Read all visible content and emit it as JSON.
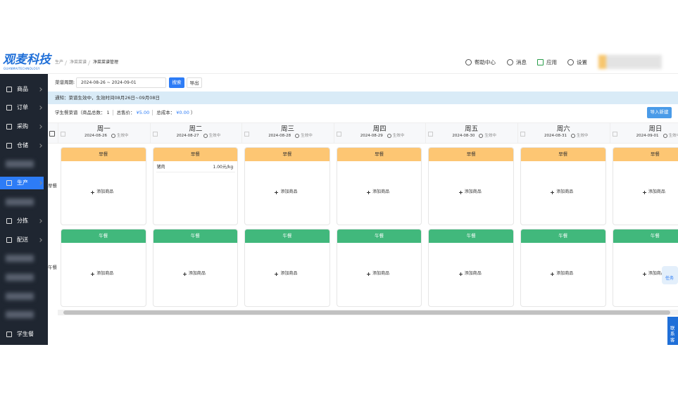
{
  "logo": {
    "title": "观麦科技",
    "subtitle": "GUANMAITECHNOLOGY"
  },
  "breadcrumb": [
    "生产",
    "净菜菜谱",
    "净菜菜谱管理"
  ],
  "header_links": [
    "帮助中心",
    "消息",
    "应用",
    "设置"
  ],
  "sidebar": [
    "商品",
    "订单",
    "采购",
    "仓储",
    "生产",
    "分拣",
    "配送",
    "学生餐"
  ],
  "filter": {
    "label": "菜谱周期:",
    "date_range": "2024-08-26 ~ 2024-09-01",
    "search": "搜索",
    "export": "导出"
  },
  "notice": "通知：菜谱生效中，生效时间08月26日~09月08日",
  "summary": {
    "title": "学生餐菜谱（商品总数：",
    "count": "1",
    "price_label": "总售价：",
    "price": "¥5.00",
    "cost_label": "总成本：",
    "cost": "¥0.00",
    "close": "）",
    "import": "导入新建"
  },
  "days": [
    {
      "name": "周一",
      "date": "2024-08-26",
      "status": "生效中"
    },
    {
      "name": "周二",
      "date": "2024-08-27",
      "status": "生效中"
    },
    {
      "name": "周三",
      "date": "2024-08-28",
      "status": "生效中"
    },
    {
      "name": "周四",
      "date": "2024-08-29",
      "status": "生效中"
    },
    {
      "name": "周五",
      "date": "2024-08-30",
      "status": "生效中"
    },
    {
      "name": "周六",
      "date": "2024-08-31",
      "status": "生效中"
    },
    {
      "name": "周日",
      "date": "2024-09-01",
      "status": "生效中"
    }
  ],
  "meals": [
    {
      "name": "早餐",
      "cells": [
        [],
        [
          {
            "name": "猪肉",
            "price": "1.00元/kg"
          }
        ],
        [],
        [],
        [],
        [],
        []
      ]
    },
    {
      "name": "午餐",
      "cells": [
        [],
        [],
        [],
        [],
        [],
        [],
        []
      ]
    }
  ],
  "add_item": "添加商品",
  "float": {
    "task": "任务",
    "contact": "联系客"
  }
}
